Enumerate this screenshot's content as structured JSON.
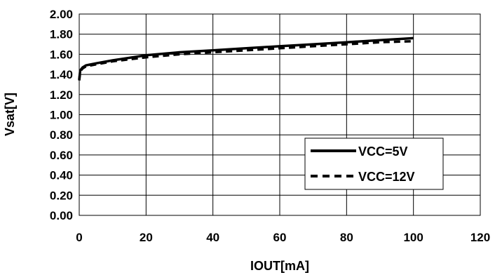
{
  "chart_data": {
    "type": "line",
    "xlabel": "IOUT[mA]",
    "ylabel": "Vsat[V]",
    "xlim": [
      0,
      120
    ],
    "ylim": [
      0,
      2.0
    ],
    "x_ticks": [
      "0",
      "20",
      "40",
      "60",
      "80",
      "100",
      "120"
    ],
    "y_ticks": [
      "0.00",
      "0.20",
      "0.40",
      "0.60",
      "0.80",
      "1.00",
      "1.20",
      "1.40",
      "1.60",
      "1.80",
      "2.00"
    ],
    "grid": true,
    "legend_position": "lower-right",
    "series": [
      {
        "name": "VCC=5V",
        "style": "solid",
        "color": "#000000",
        "x": [
          0,
          0.3,
          1,
          2,
          5,
          10,
          20,
          30,
          40,
          50,
          60,
          70,
          80,
          90,
          100
        ],
        "y": [
          1.35,
          1.44,
          1.47,
          1.49,
          1.51,
          1.54,
          1.59,
          1.62,
          1.64,
          1.66,
          1.68,
          1.7,
          1.72,
          1.74,
          1.76
        ]
      },
      {
        "name": "VCC=12V",
        "style": "dashed",
        "color": "#000000",
        "x": [
          0,
          0.3,
          1,
          2,
          5,
          10,
          20,
          30,
          40,
          50,
          60,
          70,
          80,
          90,
          100
        ],
        "y": [
          1.34,
          1.43,
          1.46,
          1.48,
          1.5,
          1.53,
          1.57,
          1.6,
          1.62,
          1.64,
          1.66,
          1.68,
          1.7,
          1.72,
          1.73
        ]
      }
    ]
  }
}
